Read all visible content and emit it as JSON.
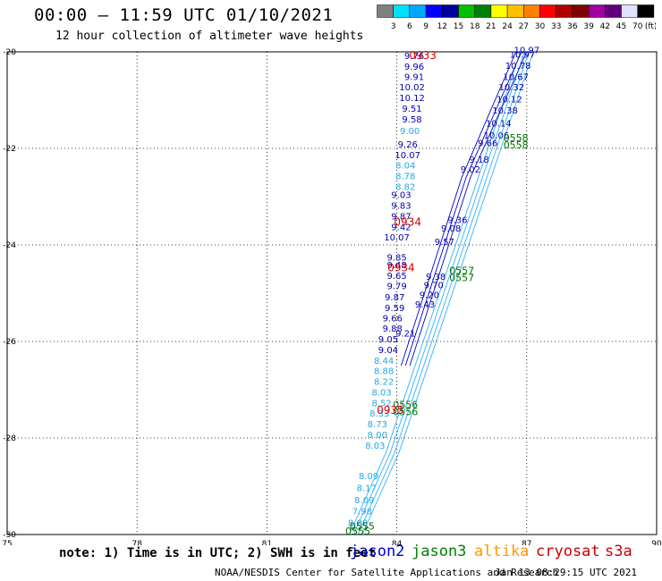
{
  "header": {
    "title": "00:00 – 11:59 UTC 01/10/2021",
    "subtitle": "12 hour collection of altimeter wave heights"
  },
  "colorbar": {
    "colors": [
      "#808080",
      "#00e0ff",
      "#00a8ff",
      "#0000ff",
      "#0000a0",
      "#00c000",
      "#008000",
      "#ffff00",
      "#ffc000",
      "#ff8000",
      "#ff0000",
      "#b00000",
      "#800000",
      "#a000a0",
      "#600080",
      "#e0e0ff",
      "#000000"
    ],
    "labels": [
      "3",
      "6",
      "9",
      "12",
      "15",
      "18",
      "21",
      "24",
      "27",
      "30",
      "33",
      "36",
      "39",
      "42",
      "45",
      "70"
    ],
    "unit_label": "(ft)"
  },
  "chart_data": {
    "type": "map",
    "x_ticks": [
      "75",
      "78",
      "81",
      "84",
      "87",
      "90"
    ],
    "y_ticks": [
      "-20",
      "-22",
      "-24",
      "-26",
      "-28",
      "-30"
    ],
    "xlim": [
      75,
      90
    ],
    "ylim": [
      -30,
      -20
    ],
    "grid": true,
    "dark_blue_labels": [
      {
        "lon": 84.4,
        "lat": -20.15,
        "text": "9.76"
      },
      {
        "lon": 84.4,
        "lat": -20.37,
        "text": "9.96"
      },
      {
        "lon": 84.4,
        "lat": -20.58,
        "text": "9.91"
      },
      {
        "lon": 84.35,
        "lat": -20.8,
        "text": "10.02"
      },
      {
        "lon": 84.35,
        "lat": -21.02,
        "text": "10.12"
      },
      {
        "lon": 84.35,
        "lat": -21.24,
        "text": "9.51"
      },
      {
        "lon": 84.35,
        "lat": -21.46,
        "text": "9.58"
      },
      {
        "lon": 84.25,
        "lat": -21.98,
        "text": "9.26"
      },
      {
        "lon": 84.25,
        "lat": -22.2,
        "text": "10.07"
      },
      {
        "lon": 84.1,
        "lat": -23.03,
        "text": "9.03"
      },
      {
        "lon": 84.1,
        "lat": -23.25,
        "text": "9.83"
      },
      {
        "lon": 84.1,
        "lat": -23.47,
        "text": "9.87"
      },
      {
        "lon": 84.1,
        "lat": -23.69,
        "text": "9.42"
      },
      {
        "lon": 84.0,
        "lat": -23.91,
        "text": "10.07"
      },
      {
        "lon": 84.0,
        "lat": -24.32,
        "text": "9.85"
      },
      {
        "lon": 84.0,
        "lat": -24.48,
        "text": "9.48"
      },
      {
        "lon": 84.0,
        "lat": -24.7,
        "text": "9.65"
      },
      {
        "lon": 84.0,
        "lat": -24.92,
        "text": "9.79"
      },
      {
        "lon": 83.95,
        "lat": -25.15,
        "text": "9.87"
      },
      {
        "lon": 83.95,
        "lat": -25.37,
        "text": "9.59"
      },
      {
        "lon": 83.9,
        "lat": -25.58,
        "text": "9.66"
      },
      {
        "lon": 83.9,
        "lat": -25.8,
        "text": "9.88"
      },
      {
        "lon": 83.8,
        "lat": -26.02,
        "text": "9.05"
      },
      {
        "lon": 83.8,
        "lat": -26.24,
        "text": "9.04"
      },
      {
        "lon": 85.4,
        "lat": -23.55,
        "text": "9.36"
      },
      {
        "lon": 85.25,
        "lat": -23.72,
        "text": "9.08"
      },
      {
        "lon": 85.1,
        "lat": -24.0,
        "text": "9.57"
      },
      {
        "lon": 84.9,
        "lat": -24.72,
        "text": "9.38"
      },
      {
        "lon": 84.85,
        "lat": -24.9,
        "text": "9.70"
      },
      {
        "lon": 84.75,
        "lat": -25.1,
        "text": "9.20"
      },
      {
        "lon": 84.65,
        "lat": -25.3,
        "text": "9.43"
      },
      {
        "lon": 84.2,
        "lat": -25.9,
        "text": "9.21"
      },
      {
        "lon": 85.7,
        "lat": -22.5,
        "text": "9.02"
      },
      {
        "lon": 85.9,
        "lat": -22.3,
        "text": "9.18"
      },
      {
        "lon": 86.1,
        "lat": -21.95,
        "text": "9.66"
      },
      {
        "lon": 86.3,
        "lat": -21.8,
        "text": "10.06"
      },
      {
        "lon": 86.35,
        "lat": -21.55,
        "text": "10.14"
      },
      {
        "lon": 86.5,
        "lat": -21.28,
        "text": "10.38"
      },
      {
        "lon": 86.6,
        "lat": -21.05,
        "text": "10.12"
      },
      {
        "lon": 86.65,
        "lat": -20.8,
        "text": "10.32"
      },
      {
        "lon": 86.75,
        "lat": -20.58,
        "text": "10.67"
      },
      {
        "lon": 86.8,
        "lat": -20.35,
        "text": "10.78"
      },
      {
        "lon": 86.9,
        "lat": -20.12,
        "text": "10.97"
      },
      {
        "lon": 87.0,
        "lat": -20.03,
        "text": "10.97"
      }
    ],
    "light_blue_labels": [
      {
        "lon": 84.3,
        "lat": -21.7,
        "text": "9.00"
      },
      {
        "lon": 84.2,
        "lat": -22.42,
        "text": "8.04"
      },
      {
        "lon": 84.2,
        "lat": -22.64,
        "text": "8.78"
      },
      {
        "lon": 84.2,
        "lat": -22.86,
        "text": "8.82"
      },
      {
        "lon": 83.7,
        "lat": -26.46,
        "text": "8.44"
      },
      {
        "lon": 83.7,
        "lat": -26.68,
        "text": "8.88"
      },
      {
        "lon": 83.7,
        "lat": -26.9,
        "text": "8.22"
      },
      {
        "lon": 83.65,
        "lat": -27.12,
        "text": "8.03"
      },
      {
        "lon": 83.65,
        "lat": -27.34,
        "text": "8.52"
      },
      {
        "lon": 83.6,
        "lat": -27.56,
        "text": "8.33"
      },
      {
        "lon": 83.55,
        "lat": -27.78,
        "text": "8.73"
      },
      {
        "lon": 83.55,
        "lat": -28.0,
        "text": "8.00"
      },
      {
        "lon": 83.5,
        "lat": -28.22,
        "text": "8.03"
      },
      {
        "lon": 83.35,
        "lat": -28.85,
        "text": "8.09"
      },
      {
        "lon": 83.3,
        "lat": -29.1,
        "text": "8.17"
      },
      {
        "lon": 83.25,
        "lat": -29.35,
        "text": "8.09"
      },
      {
        "lon": 83.2,
        "lat": -29.58,
        "text": "7.98"
      },
      {
        "lon": 83.1,
        "lat": -29.82,
        "text": "8.08"
      }
    ],
    "red_labels": [
      {
        "lon": 84.6,
        "lat": -20.15,
        "text": "0933"
      },
      {
        "lon": 84.25,
        "lat": -23.6,
        "text": "0934"
      },
      {
        "lon": 84.1,
        "lat": -24.55,
        "text": "0934"
      },
      {
        "lon": 83.85,
        "lat": -27.5,
        "text": "0935"
      }
    ],
    "green_labels": [
      {
        "lon": 86.75,
        "lat": -21.85,
        "text": "0558"
      },
      {
        "lon": 86.75,
        "lat": -22.0,
        "text": "0558"
      },
      {
        "lon": 85.5,
        "lat": -24.6,
        "text": "0557"
      },
      {
        "lon": 85.5,
        "lat": -24.75,
        "text": "0557"
      },
      {
        "lon": 84.2,
        "lat": -27.38,
        "text": "0556"
      },
      {
        "lon": 84.2,
        "lat": -27.53,
        "text": "0556"
      },
      {
        "lon": 83.2,
        "lat": -29.9,
        "text": "0555"
      },
      {
        "lon": 83.1,
        "lat": -30.0,
        "text": "0555"
      }
    ]
  },
  "footer": {
    "note": "note: 1) Time is in UTC; 2) SWH is in feet",
    "satellites": [
      {
        "name": "jason2",
        "color": "#0000cc"
      },
      {
        "name": "jason3",
        "color": "#008000"
      },
      {
        "name": "altika",
        "color": "#ff9900"
      },
      {
        "name": "cryosat",
        "color": "#cc0000"
      },
      {
        "name": "s3a",
        "color": "#cc0000"
      }
    ],
    "credit": "NOAA/NESDIS Center for Satellite Applications and Research",
    "timestamp": "Jan 13 08:29:15 UTC 2021"
  }
}
